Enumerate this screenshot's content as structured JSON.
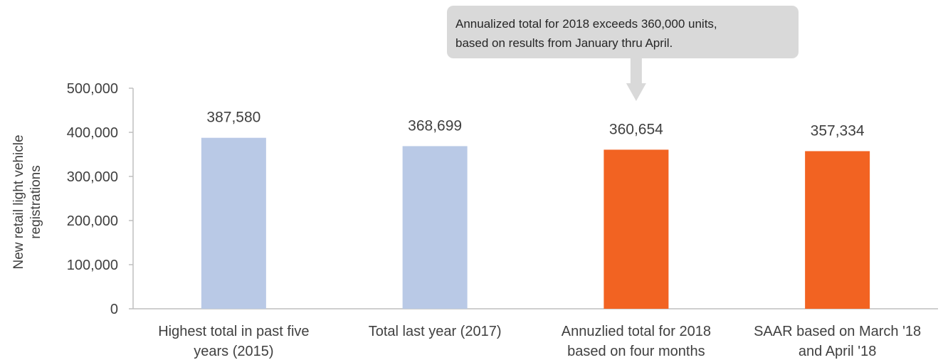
{
  "chart_data": {
    "type": "bar",
    "categories": [
      [
        "Highest total in past five",
        "years (2015)"
      ],
      [
        "Total last year (2017)"
      ],
      [
        "Annuzlied total for 2018",
        "based on four months"
      ],
      [
        "SAAR based on March '18",
        "and April '18"
      ]
    ],
    "values": [
      387580,
      368699,
      360654,
      357334
    ],
    "data_labels": [
      "387,580",
      "368,699",
      "360,654",
      "357,334"
    ],
    "bar_colors": [
      "#b9c9e6",
      "#b9c9e6",
      "#f26322",
      "#f26322"
    ],
    "ylabel": [
      "New retail light vehicle",
      "registrations"
    ],
    "ylim": [
      0,
      500000
    ],
    "yticks": [
      0,
      100000,
      200000,
      300000,
      400000,
      500000
    ],
    "ytick_labels": [
      "0",
      "100,000",
      "200,000",
      "300,000",
      "400,000",
      "500,000"
    ],
    "grid": false,
    "legend": "none",
    "annotation": {
      "lines": [
        "Annualized total for 2018 exceeds 360,000 units,",
        "based on results from January thru April."
      ],
      "points_to_category": 2,
      "box_color": "#d9d9d9"
    },
    "axis_color": "#bfbfbf"
  }
}
